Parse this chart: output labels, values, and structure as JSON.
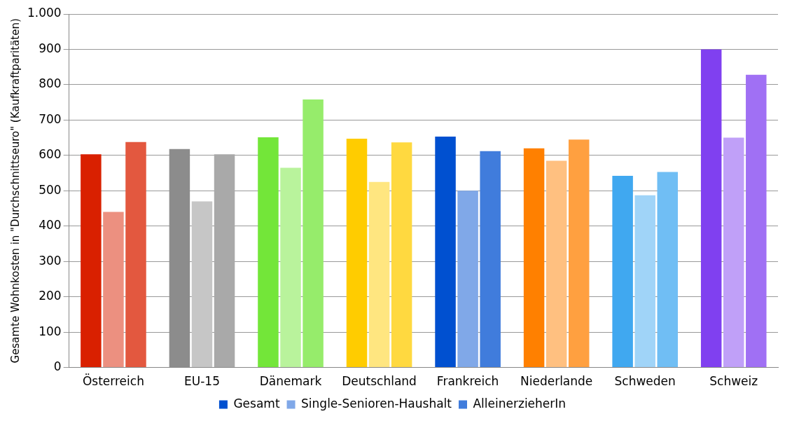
{
  "chart_data": {
    "type": "bar",
    "ylabel": "Gesamte Wohnkosten in \"Durchschnittseuro\" (Kaufkraftparitäten)",
    "categories": [
      "Österreich",
      "EU-15",
      "Dänemark",
      "Deutschland",
      "Frankreich",
      "Niederlande",
      "Schweden",
      "Schweiz"
    ],
    "series": [
      {
        "name": "Gesamt",
        "color": "#0050d0",
        "colors": [
          "#d92000",
          "#8c8c8c",
          "#73e639",
          "#ffcc00",
          "#0050d0",
          "#ff8000",
          "#40a8f0",
          "#8040f0"
        ],
        "values": [
          603,
          618,
          651,
          647,
          653,
          620,
          542,
          900
        ]
      },
      {
        "name": "Single-Senioren-Haushalt",
        "color": "#80a8e8",
        "colors": [
          "#ec9080",
          "#c6c6c6",
          "#b9f39c",
          "#ffe680",
          "#80a8e8",
          "#ffc080",
          "#a0d4f8",
          "#c0a0f8"
        ],
        "values": [
          440,
          470,
          565,
          525,
          500,
          585,
          487,
          650
        ]
      },
      {
        "name": "AlleinerzieherIn",
        "color": "#407cdc",
        "colors": [
          "#e3583f",
          "#a9a9a9",
          "#96ec6b",
          "#ffd940",
          "#407cdc",
          "#ffa040",
          "#70bef4",
          "#a070f4"
        ],
        "values": [
          638,
          603,
          758,
          637,
          612,
          645,
          553,
          828
        ]
      }
    ],
    "ylim": [
      0,
      1000
    ],
    "yticks": [
      0,
      100,
      200,
      300,
      400,
      500,
      600,
      700,
      800,
      900,
      {
        "value": 1000,
        "label": "1.000"
      }
    ],
    "grid": "y",
    "legend": "bottom"
  }
}
